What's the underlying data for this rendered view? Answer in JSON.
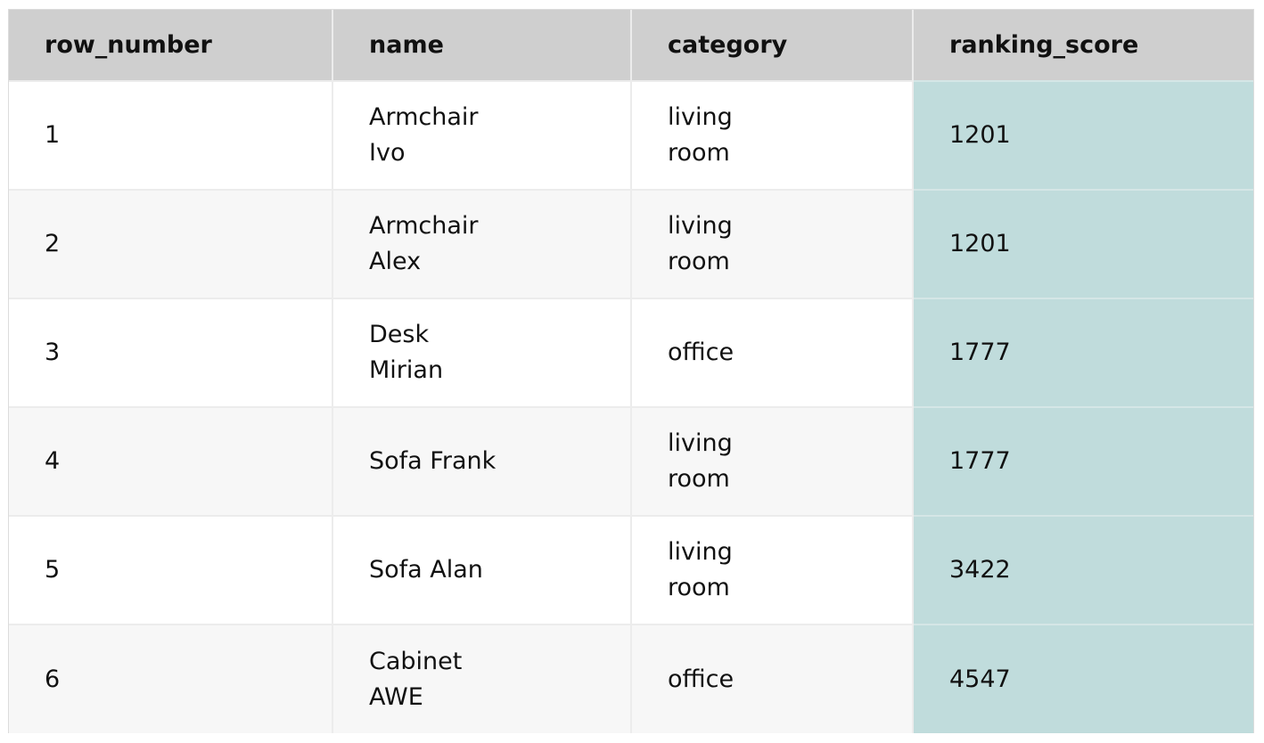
{
  "table": {
    "columns": [
      "row_number",
      "name",
      "category",
      "ranking_score"
    ],
    "rows": [
      {
        "row_number": "1",
        "name": "Armchair Ivo",
        "category": "living room",
        "ranking_score": "1201"
      },
      {
        "row_number": "2",
        "name": "Armchair Alex",
        "category": "living room",
        "ranking_score": "1201"
      },
      {
        "row_number": "3",
        "name": "Desk Mirian",
        "category": "office",
        "ranking_score": "1777"
      },
      {
        "row_number": "4",
        "name": "Sofa Frank",
        "category": "living room",
        "ranking_score": "1777"
      },
      {
        "row_number": "5",
        "name": "Sofa Alan",
        "category": "living room",
        "ranking_score": "3422"
      },
      {
        "row_number": "6",
        "name": "Cabinet AWE",
        "category": "office",
        "ranking_score": "4547"
      }
    ]
  },
  "colors": {
    "header_bg": "#cfcfcf",
    "highlight_column_bg": "#c0dcdc",
    "stripe_bg": "#f7f7f7"
  }
}
